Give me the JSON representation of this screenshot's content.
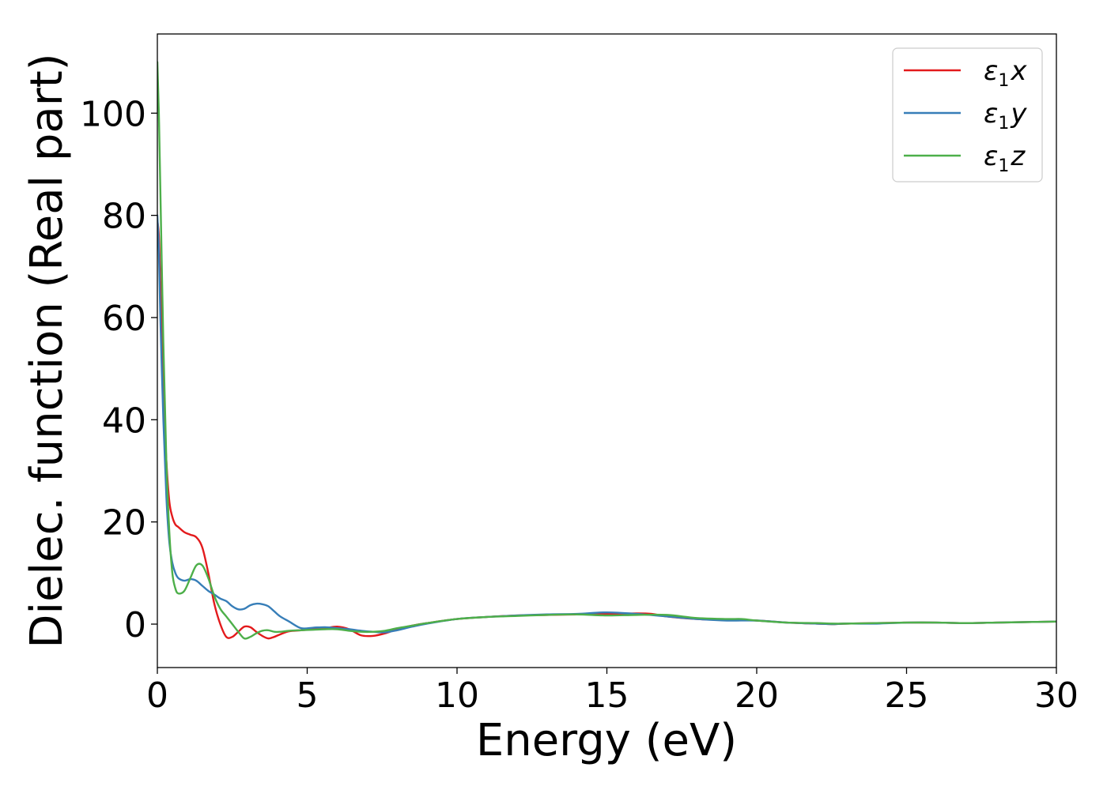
{
  "chart_data": {
    "type": "line",
    "title": "",
    "xlabel": "Energy (eV)",
    "ylabel": "Dielec. function (Real part)",
    "xlim": [
      0,
      30
    ],
    "ylim": [
      -8.5,
      115.5
    ],
    "xticks": [
      0,
      5,
      10,
      15,
      20,
      25,
      30
    ],
    "xtick_labels": [
      "0",
      "5",
      "10",
      "15",
      "20",
      "25",
      "30"
    ],
    "yticks": [
      0,
      20,
      40,
      60,
      80,
      100
    ],
    "ytick_labels": [
      "0",
      "20",
      "40",
      "60",
      "80",
      "100"
    ],
    "grid": false,
    "legend_position": "top-right",
    "colors": {
      "x": "#e31a1c",
      "y": "#377eb8",
      "z": "#4daf4a"
    },
    "series": [
      {
        "name": "ε1x",
        "label_main": "ε",
        "label_sub": "1",
        "label_var": "x",
        "color": "#e31a1c",
        "x": [
          0,
          0.05,
          0.1,
          0.2,
          0.3,
          0.4,
          0.5,
          0.6,
          0.7,
          0.9,
          1.1,
          1.3,
          1.5,
          1.7,
          1.9,
          2.1,
          2.3,
          2.5,
          2.7,
          2.9,
          3.1,
          3.3,
          3.5,
          3.7,
          3.9,
          4.1,
          4.4,
          4.8,
          5.2,
          5.6,
          6.0,
          6.4,
          6.8,
          7.2,
          7.6,
          8.0,
          8.5,
          9.0,
          10,
          11,
          12,
          13,
          14,
          15,
          16,
          16.5,
          17,
          18,
          19,
          20,
          21,
          22,
          22.5,
          23,
          24,
          25,
          26,
          27,
          28,
          29,
          30
        ],
        "y": [
          79,
          76,
          67,
          45,
          32,
          24,
          21,
          19.5,
          19,
          18,
          17.5,
          17,
          15,
          10,
          4,
          0,
          -2.5,
          -2.5,
          -1.5,
          -0.5,
          -0.6,
          -1.5,
          -2.3,
          -2.8,
          -2.5,
          -2.0,
          -1.4,
          -1.2,
          -1.0,
          -0.8,
          -0.5,
          -1.0,
          -2.2,
          -2.3,
          -1.8,
          -1.0,
          -0.3,
          0.2,
          1.0,
          1.4,
          1.7,
          1.8,
          1.9,
          2.0,
          2.1,
          2.0,
          1.5,
          1.0,
          0.8,
          0.7,
          0.3,
          0.1,
          0,
          0.1,
          0.2,
          0.3,
          0.3,
          0.2,
          0.3,
          0.4,
          0.5
        ]
      },
      {
        "name": "ε1y",
        "label_main": "ε",
        "label_sub": "1",
        "label_var": "y",
        "color": "#377eb8",
        "x": [
          0,
          0.05,
          0.1,
          0.2,
          0.3,
          0.4,
          0.5,
          0.6,
          0.7,
          0.9,
          1.1,
          1.3,
          1.5,
          1.7,
          1.9,
          2.1,
          2.3,
          2.5,
          2.7,
          2.9,
          3.1,
          3.3,
          3.5,
          3.7,
          3.9,
          4.1,
          4.4,
          4.8,
          5.2,
          5.6,
          6.0,
          6.4,
          6.8,
          7.2,
          7.6,
          8.0,
          8.5,
          9.0,
          10,
          11,
          12,
          13,
          14,
          15,
          16,
          17,
          18,
          19,
          20,
          21,
          22,
          22.5,
          23,
          24,
          25,
          26,
          27,
          28,
          29,
          30
        ],
        "y": [
          80,
          73,
          60,
          40,
          25,
          16,
          12,
          10,
          9,
          8.5,
          8.8,
          8.5,
          7.5,
          6.5,
          5.8,
          5,
          4.5,
          3.5,
          2.9,
          3.0,
          3.7,
          4.0,
          3.9,
          3.5,
          2.5,
          1.5,
          0.5,
          -0.8,
          -0.7,
          -0.6,
          -0.8,
          -1.0,
          -1.3,
          -1.5,
          -1.6,
          -1.2,
          -0.5,
          0.1,
          1.0,
          1.4,
          1.7,
          1.9,
          2.0,
          2.3,
          2.0,
          1.5,
          1.0,
          0.7,
          0.7,
          0.3,
          0.1,
          0,
          0.1,
          0.1,
          0.3,
          0.3,
          0.2,
          0.3,
          0.4,
          0.5
        ]
      },
      {
        "name": "ε1z",
        "label_main": "ε",
        "label_sub": "1",
        "label_var": "z",
        "color": "#4daf4a",
        "x": [
          0,
          0.05,
          0.1,
          0.2,
          0.3,
          0.4,
          0.5,
          0.6,
          0.7,
          0.9,
          1.1,
          1.3,
          1.5,
          1.7,
          1.9,
          2.1,
          2.3,
          2.5,
          2.7,
          2.9,
          3.1,
          3.3,
          3.5,
          3.7,
          3.9,
          4.1,
          4.4,
          4.8,
          5.2,
          5.6,
          6.0,
          6.4,
          6.8,
          7.2,
          7.6,
          8.0,
          8.5,
          9.0,
          10,
          11,
          12,
          13,
          14,
          15,
          16,
          17,
          18,
          19,
          19.5,
          20,
          21,
          22,
          22.5,
          23,
          24,
          25,
          26,
          27,
          28,
          29,
          30
        ],
        "y": [
          110,
          100,
          85,
          55,
          32,
          18,
          10,
          7,
          6,
          6.5,
          9,
          11.5,
          11.5,
          9,
          5.5,
          3,
          1.5,
          0,
          -1.5,
          -2.8,
          -2.5,
          -1.8,
          -1.3,
          -1.2,
          -1.5,
          -1.5,
          -1.3,
          -1.2,
          -1.1,
          -1.0,
          -1.0,
          -1.3,
          -1.5,
          -1.5,
          -1.3,
          -0.8,
          -0.3,
          0.2,
          1.0,
          1.4,
          1.6,
          1.8,
          1.9,
          1.7,
          1.8,
          1.8,
          1.2,
          1.0,
          1.0,
          0.7,
          0.3,
          0.2,
          0.1,
          0.1,
          0.2,
          0.3,
          0.3,
          0.2,
          0.3,
          0.4,
          0.5
        ]
      }
    ]
  }
}
